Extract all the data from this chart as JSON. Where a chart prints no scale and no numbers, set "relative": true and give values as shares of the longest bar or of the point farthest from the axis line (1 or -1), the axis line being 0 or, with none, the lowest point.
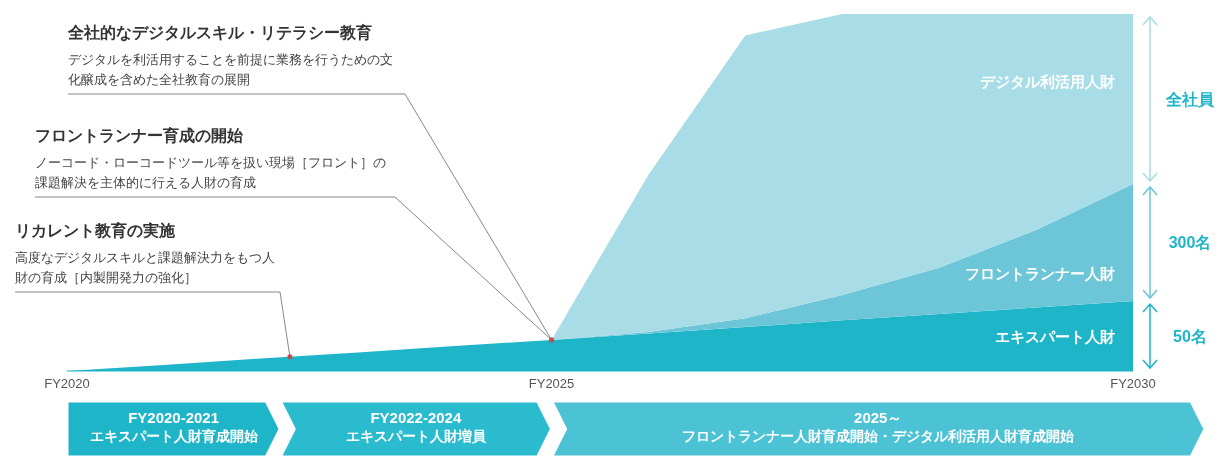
{
  "chart_data": {
    "type": "area",
    "stacked": true,
    "relative": true,
    "categories": [
      "FY2020",
      null,
      null,
      null,
      null,
      "FY2025",
      null,
      null,
      null,
      null,
      null,
      "FY2030"
    ],
    "series": [
      {
        "name": "エキスパート人財",
        "color": "#1fb5c9",
        "values": [
          0,
          0.017,
          0.035,
          0.052,
          0.07,
          0.087,
          0.105,
          0.123,
          0.142,
          0.16,
          0.178,
          0.196
        ]
      },
      {
        "name": "フロントランナー人財",
        "color": "#6cc6d7",
        "values": [
          0,
          0,
          0,
          0,
          0,
          0,
          0.004,
          0.025,
          0.071,
          0.129,
          0.217,
          0.328
        ]
      },
      {
        "name": "デジタル利活用人財",
        "color": "#a8dce6",
        "values": [
          0,
          0,
          0,
          0,
          0,
          0,
          0.441,
          0.792,
          0.787,
          0.711,
          0.605,
          0.476
        ]
      }
    ],
    "annotations": [
      "全社的なデジタルスキル・リテラシー教育",
      "デジタルを利活用することを前提に業務を行うための文化醸成を含めた全社教育の展開",
      "フロントランナー育成の開始",
      "ノーコード・ローコードツール等を扱い現場［フロント］の課題解決を主体的に行える人財の育成",
      "リカレント教育の実施",
      "高度なデジタルスキルと課題解決力をもつ人財の育成［内製開発力の強化］",
      "50名",
      "300名",
      "全社員",
      "FY2020-2021",
      "エキスパート人財育成開始",
      "FY2022-2024",
      "エキスパート人財増員",
      "2025～",
      "フロントランナー人財育成開始・デジタル利活用人財育成開始"
    ],
    "legend": false
  }
}
